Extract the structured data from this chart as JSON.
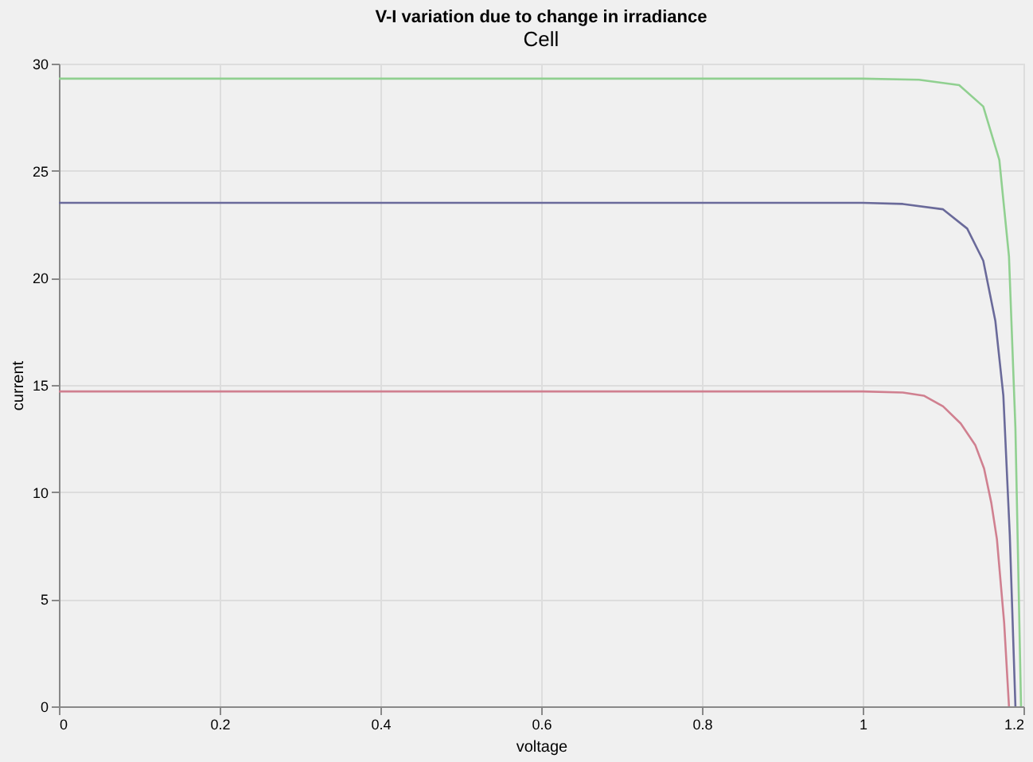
{
  "chart_data": {
    "type": "line",
    "title": "V-I variation due to change in irradiance",
    "xlabel": "voltage",
    "ylabel": "current",
    "annotations": [
      "Cell"
    ],
    "xlim": [
      0,
      1.2
    ],
    "xticks": [
      0,
      0.2,
      0.4,
      0.6,
      0.8,
      1,
      1.2
    ],
    "ylim": [
      0,
      30
    ],
    "yticks": [
      0,
      5,
      10,
      15,
      20,
      25,
      30
    ],
    "grid": true,
    "series": [
      {
        "color": "#d08090",
        "x": [
          0,
          0.5,
          1.0,
          1.05,
          1.076,
          1.1,
          1.122,
          1.14,
          1.151,
          1.16,
          1.167,
          1.176,
          1.182
        ],
        "values": [
          14.7,
          14.7,
          14.7,
          14.65,
          14.5,
          14.0,
          13.2,
          12.2,
          11.1,
          9.5,
          7.8,
          3.9,
          0
        ]
      },
      {
        "color": "#6a6a9a",
        "x": [
          0,
          0.5,
          1.0,
          1.05,
          1.1,
          1.13,
          1.15,
          1.165,
          1.175,
          1.183,
          1.19
        ],
        "values": [
          23.5,
          23.5,
          23.5,
          23.45,
          23.2,
          22.3,
          20.8,
          18.0,
          14.5,
          8.0,
          0
        ]
      },
      {
        "color": "#90d090",
        "x": [
          0,
          0.5,
          1.0,
          1.07,
          1.12,
          1.15,
          1.17,
          1.182,
          1.19,
          1.197
        ],
        "values": [
          29.3,
          29.3,
          29.3,
          29.25,
          29.0,
          28.0,
          25.5,
          21.0,
          13.0,
          0
        ]
      }
    ]
  }
}
